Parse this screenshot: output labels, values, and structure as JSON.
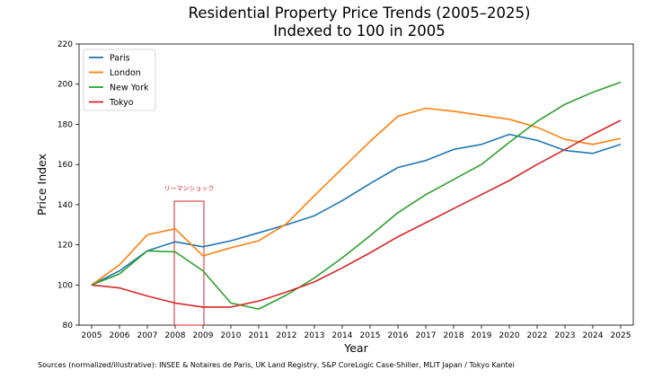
{
  "chart_data": {
    "type": "line",
    "title": "Residential Property Price Trends (2005–2025)",
    "subtitle": "Indexed to 100 in 2005",
    "xlabel": "Year",
    "ylabel": "Price Index",
    "ylim": [
      80,
      220
    ],
    "yticks": [
      80,
      100,
      120,
      140,
      160,
      180,
      200,
      220
    ],
    "x": [
      2005,
      2006,
      2007,
      2008,
      2009,
      2010,
      2011,
      2012,
      2013,
      2014,
      2015,
      2016,
      2017,
      2018,
      2019,
      2020,
      2022,
      2023,
      2024,
      2025
    ],
    "xticks": [
      "2005",
      "2006",
      "2007",
      "2008",
      "2009",
      "2010",
      "2011",
      "2012",
      "2013",
      "2014",
      "2015",
      "2016",
      "2017",
      "2018",
      "2019",
      "2020",
      "2022",
      "2023",
      "2024",
      "2025"
    ],
    "grid": false,
    "legend": "top-left",
    "series": [
      {
        "name": "Paris",
        "color": "#1f77b4",
        "values": [
          100,
          107,
          117,
          121.5,
          119,
          122,
          126,
          130,
          134.5,
          142,
          150.5,
          158.5,
          162,
          167.5,
          170,
          175,
          172,
          167,
          165.5,
          170
        ]
      },
      {
        "name": "London",
        "color": "#ff7f0e",
        "values": [
          100,
          110,
          125,
          128,
          114.5,
          118.5,
          122,
          130.5,
          144.5,
          158,
          171.5,
          184,
          188,
          186.5,
          184.5,
          182.5,
          178.5,
          172.5,
          170,
          173
        ]
      },
      {
        "name": "New York",
        "color": "#2ca02c",
        "values": [
          100,
          105.5,
          117,
          116.5,
          107,
          91,
          88,
          95,
          103.5,
          113.5,
          124.5,
          136,
          145,
          152.5,
          160,
          171,
          181.5,
          190,
          196,
          201
        ]
      },
      {
        "name": "Tokyo",
        "color": "#d62728",
        "values": [
          100,
          98.5,
          94.5,
          91,
          89,
          89,
          92,
          96.5,
          101.5,
          108.5,
          116,
          124,
          131,
          138,
          145,
          152,
          160,
          167.5,
          175,
          182
        ]
      }
    ],
    "annotation": {
      "label": "リーマンショック",
      "x_start": 2008,
      "x_end": 2009,
      "color": "#d62728"
    }
  },
  "source": "Sources (normalized/illustrative): INSEE & Notaires de Paris, UK Land Registry, S&P CoreLogic Case-Shiller, MLIT Japan / Tokyo Kantei"
}
